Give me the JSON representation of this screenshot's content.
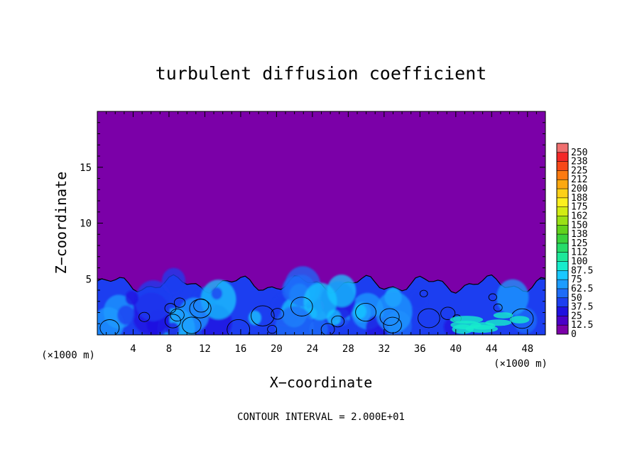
{
  "chart_data": {
    "type": "heatmap",
    "title": "turbulent diffusion coefficient",
    "xlabel": "X−coordinate",
    "ylabel": "Z−coordinate",
    "x_unit": "(×1000 m)",
    "y_unit": "(×1000 m)",
    "xlim": [
      0,
      50
    ],
    "ylim": [
      0,
      20
    ],
    "x_ticks": [
      4,
      8,
      12,
      16,
      20,
      24,
      28,
      32,
      36,
      40,
      44,
      48
    ],
    "y_ticks": [
      5,
      10,
      15
    ],
    "colorbar": {
      "levels": [
        "0",
        "12.5",
        "25",
        "37.5",
        "50",
        "62.5",
        "75",
        "87.5",
        "100",
        "112",
        "125",
        "138",
        "150",
        "162",
        "175",
        "188",
        "200",
        "212",
        "225",
        "238",
        "250"
      ],
      "colors": [
        "#7b00a8",
        "#4b00c8",
        "#1f10e0",
        "#1c3ef0",
        "#1e6cf8",
        "#1c9cff",
        "#19c8ff",
        "#17eccc",
        "#1ee89a",
        "#26dc6a",
        "#3ad23c",
        "#62d21c",
        "#9ae016",
        "#d2ec14",
        "#fcf01e",
        "#fcd018",
        "#fca810",
        "#fc7a10",
        "#f84818",
        "#f42828",
        "#f07070"
      ]
    },
    "boundary_layer_top_approx": 5,
    "annotation": "CONTOUR INTERVAL = 2.000E+01",
    "grid": false
  }
}
